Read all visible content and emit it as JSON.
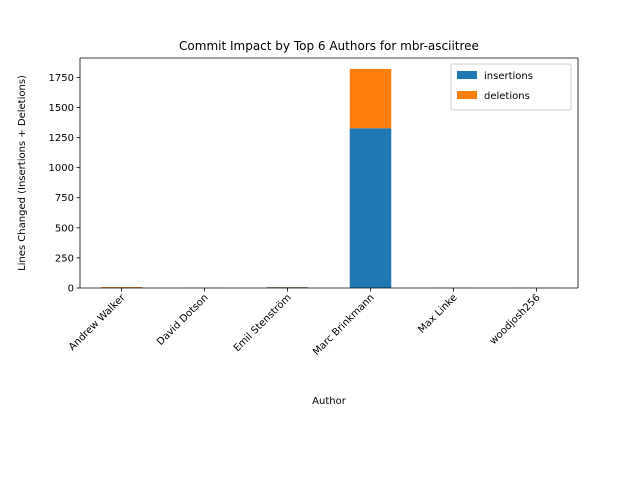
{
  "chart_data": {
    "type": "bar",
    "stacked": true,
    "title": "Commit Impact by Top 6 Authors for mbr-asciitree",
    "xlabel": "Author",
    "ylabel": "Lines Changed (Insertions + Deletions)",
    "categories": [
      "Andrew Walker",
      "David Dotson",
      "Emil Stenström",
      "Marc Brinkmann",
      "Max Linke",
      "woodjosh256"
    ],
    "series": [
      {
        "name": "insertions",
        "color": "#1f77b4",
        "values": [
          3,
          1,
          6,
          1327,
          1,
          1
        ]
      },
      {
        "name": "deletions",
        "color": "#ff7f0e",
        "values": [
          5,
          1,
          2,
          493,
          1,
          1
        ]
      }
    ],
    "ylim": [
      0,
      1911
    ],
    "yticks": [
      0,
      250,
      500,
      750,
      1000,
      1250,
      1500,
      1750
    ],
    "grid": false,
    "legend_position": "top-right"
  }
}
